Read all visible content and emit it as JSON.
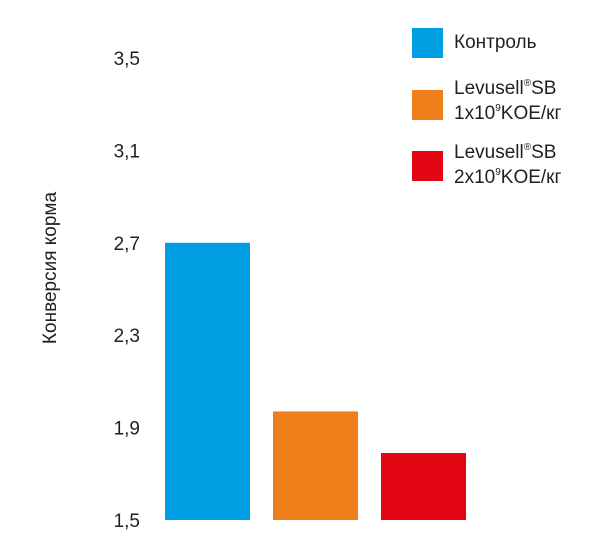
{
  "chart_data": {
    "type": "bar",
    "categories": [
      "Контроль",
      "Levusell®SB 1x10⁹KOE/кг",
      "Levusell®SB 2x10⁹KOE/кг"
    ],
    "values": [
      2.7,
      1.97,
      1.79
    ],
    "colors": [
      "#009fe3",
      "#ef7f1a",
      "#e30613"
    ],
    "ylabel": "Конверсия корма",
    "ylim": [
      1.5,
      3.5
    ],
    "yticks": [
      "3,5",
      "3,1",
      "2,7",
      "2,3",
      "1,9",
      "1,5"
    ],
    "ytick_values": [
      3.5,
      3.1,
      2.7,
      2.3,
      1.9,
      1.5
    ],
    "grid": false,
    "legend_position": "top-right"
  },
  "legend": [
    {
      "name": "Контроль",
      "color": "#009fe3"
    },
    {
      "name_main": "Levusell",
      "name_sup": "®",
      "name_suffix": "SB",
      "dose_pre": "1x10",
      "dose_sup": "9",
      "dose_post": "KOE/кг",
      "color": "#ef7f1a"
    },
    {
      "name_main": "Levusell",
      "name_sup": "®",
      "name_suffix": "SB",
      "dose_pre": "2x10",
      "dose_sup": "9",
      "dose_post": "KOE/кг",
      "color": "#e30613"
    }
  ]
}
